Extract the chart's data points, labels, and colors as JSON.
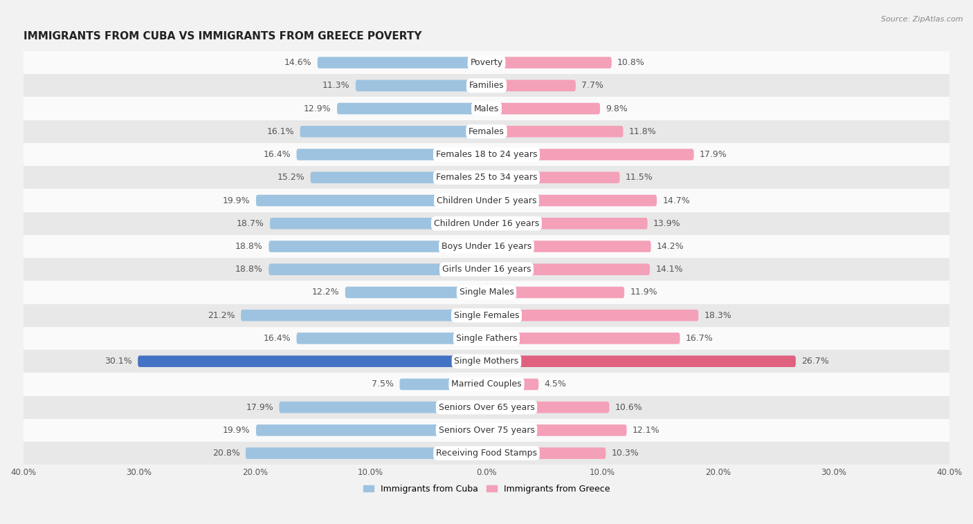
{
  "title": "IMMIGRANTS FROM CUBA VS IMMIGRANTS FROM GREECE POVERTY",
  "source": "Source: ZipAtlas.com",
  "categories": [
    "Poverty",
    "Families",
    "Males",
    "Females",
    "Females 18 to 24 years",
    "Females 25 to 34 years",
    "Children Under 5 years",
    "Children Under 16 years",
    "Boys Under 16 years",
    "Girls Under 16 years",
    "Single Males",
    "Single Females",
    "Single Fathers",
    "Single Mothers",
    "Married Couples",
    "Seniors Over 65 years",
    "Seniors Over 75 years",
    "Receiving Food Stamps"
  ],
  "cuba_values": [
    14.6,
    11.3,
    12.9,
    16.1,
    16.4,
    15.2,
    19.9,
    18.7,
    18.8,
    18.8,
    12.2,
    21.2,
    16.4,
    30.1,
    7.5,
    17.9,
    19.9,
    20.8
  ],
  "greece_values": [
    10.8,
    7.7,
    9.8,
    11.8,
    17.9,
    11.5,
    14.7,
    13.9,
    14.2,
    14.1,
    11.9,
    18.3,
    16.7,
    26.7,
    4.5,
    10.6,
    12.1,
    10.3
  ],
  "cuba_color": "#9dc3e0",
  "greece_color": "#f4a0b8",
  "cuba_highlight_color": "#4472c4",
  "greece_highlight_color": "#e06080",
  "highlight_row": 13,
  "xlim": 40.0,
  "background_color": "#f2f2f2",
  "row_even_color": "#fafafa",
  "row_odd_color": "#e8e8e8",
  "bar_height": 0.5,
  "label_fontsize": 9,
  "category_fontsize": 9,
  "title_fontsize": 11,
  "legend_fontsize": 9,
  "tick_fontsize": 8.5
}
